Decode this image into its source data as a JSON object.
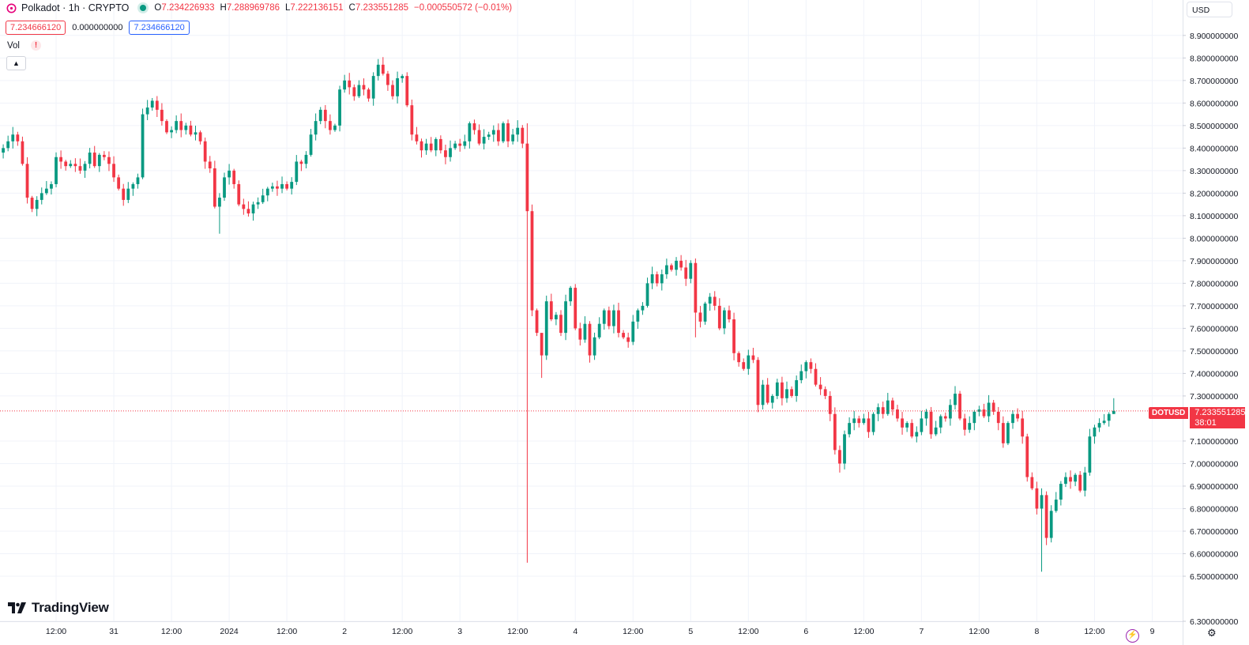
{
  "header": {
    "symbol_title": "Polkadot · 1h · CRYPTO",
    "ohlc": [
      {
        "key": "O",
        "value": "7.234226933"
      },
      {
        "key": "H",
        "value": "7.288969786"
      },
      {
        "key": "L",
        "value": "7.222136151"
      },
      {
        "key": "C",
        "value": "7.233551285"
      }
    ],
    "change": "−0.000550572 (−0.01%)",
    "bid": "7.234666120",
    "spread": "0.000000000",
    "ask": "7.234666120",
    "vol_label": "Vol",
    "warning": "!",
    "currency": "USD"
  },
  "branding": {
    "logo_text": "TradingView"
  },
  "colors": {
    "up": "#089981",
    "down": "#f23645",
    "grid": "#f0f3fa",
    "axis_text": "#131722",
    "accent": "#2962ff",
    "bolt": "#9c27b0"
  },
  "price_tag": {
    "symbol": "DOTUSD",
    "price": "7.233551285",
    "countdown": "38:01"
  },
  "chart_data": {
    "type": "candlestick",
    "interval": "1h",
    "y_range": [
      6.3,
      8.98
    ],
    "y_ticks": [
      {
        "value": 8.9,
        "label": "8.900000000"
      },
      {
        "value": 8.8,
        "label": "8.800000000"
      },
      {
        "value": 8.7,
        "label": "8.700000000"
      },
      {
        "value": 8.6,
        "label": "8.600000000"
      },
      {
        "value": 8.5,
        "label": "8.500000000"
      },
      {
        "value": 8.4,
        "label": "8.400000000"
      },
      {
        "value": 8.3,
        "label": "8.300000000"
      },
      {
        "value": 8.2,
        "label": "8.200000000"
      },
      {
        "value": 8.1,
        "label": "8.100000000"
      },
      {
        "value": 8.0,
        "label": "8.000000000"
      },
      {
        "value": 7.9,
        "label": "7.900000000"
      },
      {
        "value": 7.8,
        "label": "7.800000000"
      },
      {
        "value": 7.7,
        "label": "7.700000000"
      },
      {
        "value": 7.6,
        "label": "7.600000000"
      },
      {
        "value": 7.5,
        "label": "7.500000000"
      },
      {
        "value": 7.4,
        "label": "7.400000000"
      },
      {
        "value": 7.3,
        "label": "7.300000000"
      },
      {
        "value": 7.1,
        "label": "7.100000000"
      },
      {
        "value": 7.0,
        "label": "7.000000000"
      },
      {
        "value": 6.9,
        "label": "6.900000000"
      },
      {
        "value": 6.8,
        "label": "6.800000000"
      },
      {
        "value": 6.7,
        "label": "6.700000000"
      },
      {
        "value": 6.6,
        "label": "6.600000000"
      },
      {
        "value": 6.5,
        "label": "6.500000000"
      },
      {
        "value": 6.3,
        "label": "6.300000000"
      }
    ],
    "x_ticks": [
      {
        "bar": 12,
        "label": "12:00"
      },
      {
        "bar": 24,
        "label": "31"
      },
      {
        "bar": 36,
        "label": "12:00"
      },
      {
        "bar": 48,
        "label": "2024"
      },
      {
        "bar": 60,
        "label": "12:00"
      },
      {
        "bar": 72,
        "label": "2"
      },
      {
        "bar": 84,
        "label": "12:00"
      },
      {
        "bar": 96,
        "label": "3"
      },
      {
        "bar": 108,
        "label": "12:00"
      },
      {
        "bar": 120,
        "label": "4"
      },
      {
        "bar": 132,
        "label": "12:00"
      },
      {
        "bar": 144,
        "label": "5"
      },
      {
        "bar": 156,
        "label": "12:00"
      },
      {
        "bar": 168,
        "label": "6"
      },
      {
        "bar": 180,
        "label": "12:00"
      },
      {
        "bar": 192,
        "label": "7"
      },
      {
        "bar": 204,
        "label": "12:00"
      },
      {
        "bar": 216,
        "label": "8"
      },
      {
        "bar": 228,
        "label": "12:00"
      },
      {
        "bar": 240,
        "label": "9"
      }
    ],
    "last_price": 7.2336,
    "last_bar": 232,
    "x_bar_range": [
      0,
      246
    ],
    "waypoints": [
      [
        0,
        8.38
      ],
      [
        1,
        8.4
      ],
      [
        2,
        8.43
      ],
      [
        3,
        8.46
      ],
      [
        4,
        8.43
      ],
      [
        5,
        8.33
      ],
      [
        6,
        8.18
      ],
      [
        7,
        8.13
      ],
      [
        8,
        8.17
      ],
      [
        9,
        8.2
      ],
      [
        10,
        8.22
      ],
      [
        11,
        8.24
      ],
      [
        12,
        8.36
      ],
      [
        13,
        8.34
      ],
      [
        14,
        8.32
      ],
      [
        15,
        8.33
      ],
      [
        16,
        8.32
      ],
      [
        17,
        8.3
      ],
      [
        18,
        8.33
      ],
      [
        19,
        8.38
      ],
      [
        20,
        8.32
      ],
      [
        21,
        8.37
      ],
      [
        22,
        8.36
      ],
      [
        23,
        8.33
      ],
      [
        24,
        8.27
      ],
      [
        25,
        8.22
      ],
      [
        26,
        8.17
      ],
      [
        27,
        8.22
      ],
      [
        28,
        8.24
      ],
      [
        29,
        8.27
      ],
      [
        30,
        8.55
      ],
      [
        31,
        8.58
      ],
      [
        32,
        8.61
      ],
      [
        33,
        8.57
      ],
      [
        34,
        8.52
      ],
      [
        35,
        8.47
      ],
      [
        36,
        8.48
      ],
      [
        37,
        8.52
      ],
      [
        38,
        8.48
      ],
      [
        39,
        8.5
      ],
      [
        40,
        8.46
      ],
      [
        41,
        8.47
      ],
      [
        42,
        8.43
      ],
      [
        43,
        8.34
      ],
      [
        44,
        8.31
      ],
      [
        45,
        8.14
      ],
      [
        46,
        8.18
      ],
      [
        47,
        8.27
      ],
      [
        48,
        8.3
      ],
      [
        49,
        8.24
      ],
      [
        50,
        8.15
      ],
      [
        51,
        8.13
      ],
      [
        52,
        8.11
      ],
      [
        53,
        8.15
      ],
      [
        54,
        8.16
      ],
      [
        55,
        8.19
      ],
      [
        56,
        8.22
      ],
      [
        57,
        8.23
      ],
      [
        58,
        8.22
      ],
      [
        59,
        8.24
      ],
      [
        60,
        8.22
      ],
      [
        61,
        8.25
      ],
      [
        62,
        8.34
      ],
      [
        63,
        8.33
      ],
      [
        64,
        8.37
      ],
      [
        65,
        8.46
      ],
      [
        66,
        8.52
      ],
      [
        67,
        8.57
      ],
      [
        68,
        8.52
      ],
      [
        69,
        8.48
      ],
      [
        70,
        8.5
      ],
      [
        71,
        8.66
      ],
      [
        72,
        8.7
      ],
      [
        73,
        8.67
      ],
      [
        74,
        8.63
      ],
      [
        75,
        8.68
      ],
      [
        76,
        8.66
      ],
      [
        77,
        8.62
      ],
      [
        78,
        8.72
      ],
      [
        79,
        8.77
      ],
      [
        80,
        8.73
      ],
      [
        81,
        8.68
      ],
      [
        82,
        8.63
      ],
      [
        83,
        8.71
      ],
      [
        84,
        8.72
      ],
      [
        85,
        8.59
      ],
      [
        86,
        8.46
      ],
      [
        87,
        8.43
      ],
      [
        88,
        8.39
      ],
      [
        89,
        8.42
      ],
      [
        90,
        8.39
      ],
      [
        91,
        8.44
      ],
      [
        92,
        8.39
      ],
      [
        93,
        8.36
      ],
      [
        94,
        8.4
      ],
      [
        95,
        8.42
      ],
      [
        96,
        8.41
      ],
      [
        97,
        8.43
      ],
      [
        98,
        8.51
      ],
      [
        99,
        8.48
      ],
      [
        100,
        8.42
      ],
      [
        101,
        8.45
      ],
      [
        102,
        8.46
      ],
      [
        103,
        8.48
      ],
      [
        104,
        8.43
      ],
      [
        105,
        8.51
      ],
      [
        106,
        8.43
      ],
      [
        107,
        8.46
      ],
      [
        108,
        8.49
      ],
      [
        109,
        8.42
      ],
      [
        110,
        8.12
      ],
      [
        111,
        7.68
      ],
      [
        112,
        7.58
      ],
      [
        113,
        7.48
      ],
      [
        114,
        7.72
      ],
      [
        115,
        7.64
      ],
      [
        116,
        7.66
      ],
      [
        117,
        7.58
      ],
      [
        118,
        7.72
      ],
      [
        119,
        7.78
      ],
      [
        120,
        7.6
      ],
      [
        121,
        7.55
      ],
      [
        122,
        7.62
      ],
      [
        123,
        7.48
      ],
      [
        124,
        7.56
      ],
      [
        125,
        7.62
      ],
      [
        126,
        7.68
      ],
      [
        127,
        7.61
      ],
      [
        128,
        7.68
      ],
      [
        129,
        7.58
      ],
      [
        130,
        7.56
      ],
      [
        131,
        7.54
      ],
      [
        132,
        7.63
      ],
      [
        133,
        7.68
      ],
      [
        134,
        7.7
      ],
      [
        135,
        7.8
      ],
      [
        136,
        7.84
      ],
      [
        137,
        7.8
      ],
      [
        138,
        7.84
      ],
      [
        139,
        7.88
      ],
      [
        140,
        7.86
      ],
      [
        141,
        7.9
      ],
      [
        142,
        7.87
      ],
      [
        143,
        7.82
      ],
      [
        144,
        7.89
      ],
      [
        145,
        7.67
      ],
      [
        146,
        7.63
      ],
      [
        147,
        7.71
      ],
      [
        148,
        7.74
      ],
      [
        149,
        7.7
      ],
      [
        150,
        7.6
      ],
      [
        151,
        7.68
      ],
      [
        152,
        7.64
      ],
      [
        153,
        7.49
      ],
      [
        154,
        7.45
      ],
      [
        155,
        7.42
      ],
      [
        156,
        7.48
      ],
      [
        157,
        7.46
      ],
      [
        158,
        7.26
      ],
      [
        159,
        7.35
      ],
      [
        160,
        7.27
      ],
      [
        161,
        7.3
      ],
      [
        162,
        7.36
      ],
      [
        163,
        7.29
      ],
      [
        164,
        7.33
      ],
      [
        165,
        7.3
      ],
      [
        166,
        7.37
      ],
      [
        167,
        7.41
      ],
      [
        168,
        7.45
      ],
      [
        169,
        7.42
      ],
      [
        170,
        7.35
      ],
      [
        171,
        7.33
      ],
      [
        172,
        7.3
      ],
      [
        173,
        7.22
      ],
      [
        174,
        7.06
      ],
      [
        175,
        7.0
      ],
      [
        176,
        7.13
      ],
      [
        177,
        7.18
      ],
      [
        178,
        7.2
      ],
      [
        179,
        7.18
      ],
      [
        180,
        7.2
      ],
      [
        181,
        7.14
      ],
      [
        182,
        7.22
      ],
      [
        183,
        7.25
      ],
      [
        184,
        7.22
      ],
      [
        185,
        7.28
      ],
      [
        186,
        7.24
      ],
      [
        187,
        7.2
      ],
      [
        188,
        7.16
      ],
      [
        189,
        7.18
      ],
      [
        190,
        7.12
      ],
      [
        191,
        7.14
      ],
      [
        192,
        7.2
      ],
      [
        193,
        7.23
      ],
      [
        194,
        7.13
      ],
      [
        195,
        7.16
      ],
      [
        196,
        7.21
      ],
      [
        197,
        7.2
      ],
      [
        198,
        7.26
      ],
      [
        199,
        7.31
      ],
      [
        200,
        7.2
      ],
      [
        201,
        7.15
      ],
      [
        202,
        7.18
      ],
      [
        203,
        7.23
      ],
      [
        204,
        7.24
      ],
      [
        205,
        7.21
      ],
      [
        206,
        7.27
      ],
      [
        207,
        7.23
      ],
      [
        208,
        7.18
      ],
      [
        209,
        7.09
      ],
      [
        210,
        7.18
      ],
      [
        211,
        7.22
      ],
      [
        212,
        7.2
      ],
      [
        213,
        7.12
      ],
      [
        214,
        6.94
      ],
      [
        215,
        6.89
      ],
      [
        216,
        6.8
      ],
      [
        217,
        6.86
      ],
      [
        218,
        6.67
      ],
      [
        219,
        6.79
      ],
      [
        220,
        6.84
      ],
      [
        221,
        6.91
      ],
      [
        222,
        6.94
      ],
      [
        223,
        6.92
      ],
      [
        224,
        6.95
      ],
      [
        225,
        6.88
      ],
      [
        226,
        6.96
      ],
      [
        227,
        7.12
      ],
      [
        228,
        7.16
      ],
      [
        229,
        7.18
      ],
      [
        230,
        7.19
      ],
      [
        231,
        7.22
      ],
      [
        232,
        7.2336
      ]
    ],
    "wicks": [
      {
        "bar": 110,
        "high": 8.51,
        "low": 6.56
      },
      {
        "bar": 113,
        "high": 7.55,
        "low": 7.38
      },
      {
        "bar": 217,
        "high": 6.89,
        "low": 6.52
      },
      {
        "bar": 145,
        "high": 7.91,
        "low": 7.56
      },
      {
        "bar": 175,
        "high": 7.08,
        "low": 6.96
      },
      {
        "bar": 46,
        "high": 8.2,
        "low": 8.02
      },
      {
        "bar": 232,
        "high": 7.29,
        "low": 7.22
      }
    ]
  }
}
